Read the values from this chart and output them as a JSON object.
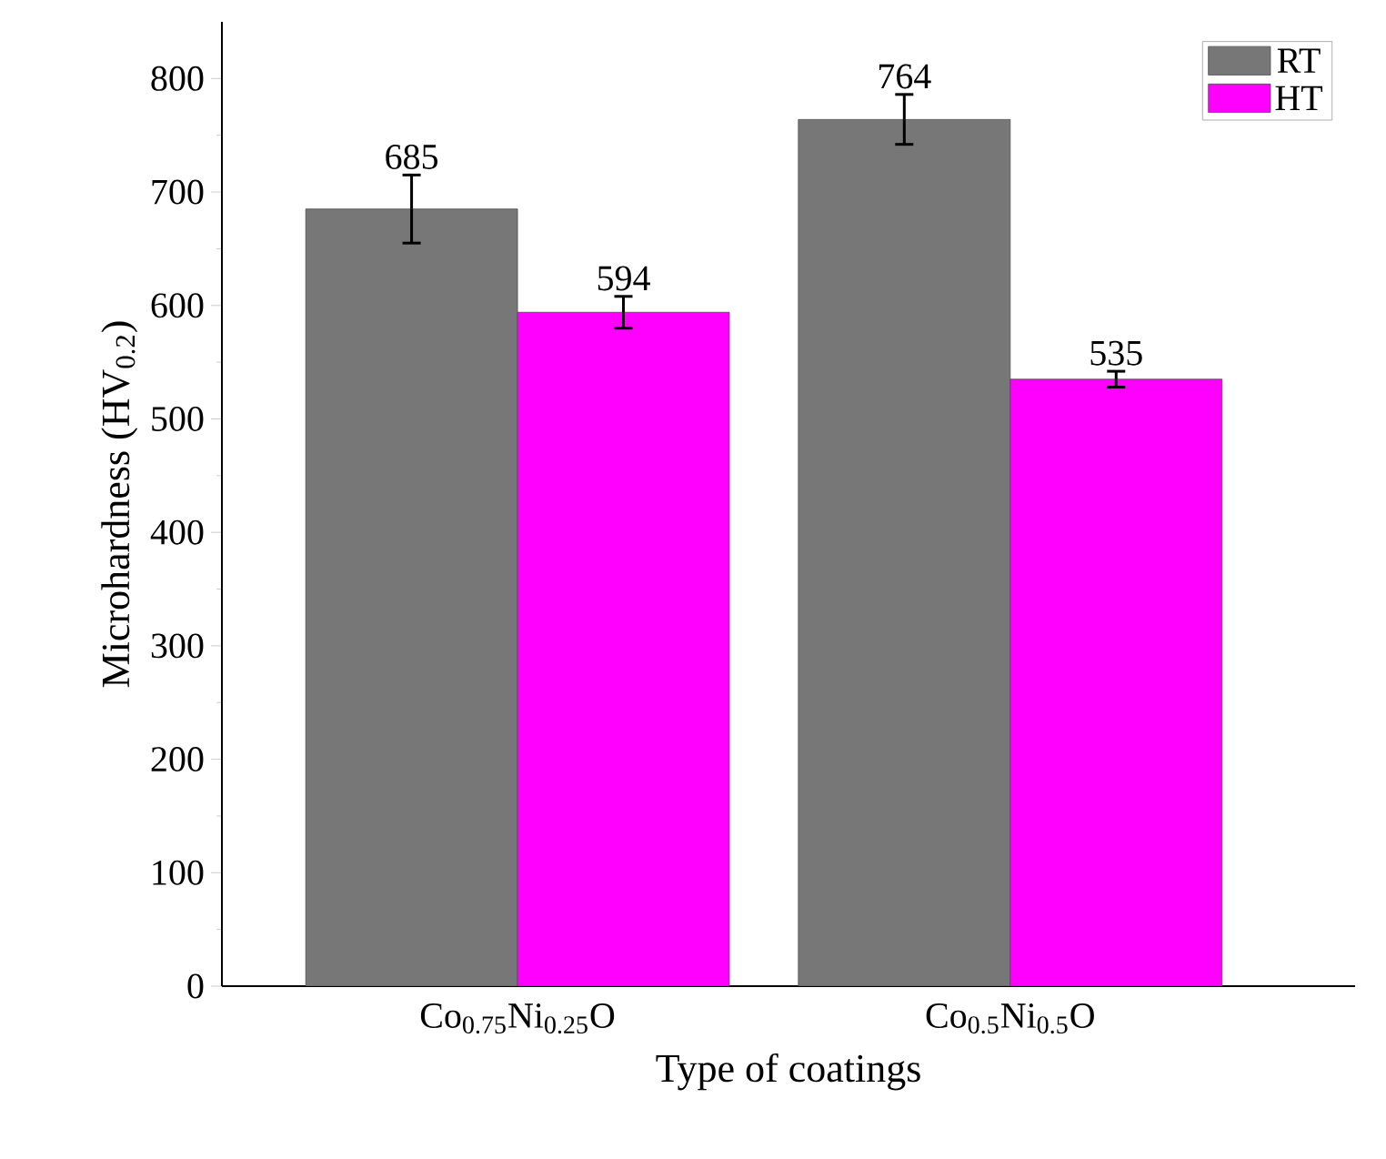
{
  "chart_data": {
    "type": "bar",
    "xlabel": "Type of coatings",
    "ylabel": "Microhardness (HV$_{0.2}$)",
    "categories": [
      "Co$_{0.75}$Ni$_{0.25}$O",
      "Co$_{0.5}$Ni$_{0.5}$O"
    ],
    "series": [
      {
        "name": "RT",
        "color": "#777777",
        "values": [
          685,
          764
        ],
        "errors": [
          30,
          22
        ]
      },
      {
        "name": "HT",
        "color": "#ff00ff",
        "values": [
          594,
          535
        ],
        "errors": [
          14,
          7
        ]
      }
    ],
    "ylim": [
      0,
      850
    ],
    "yticks": [
      0,
      100,
      200,
      300,
      400,
      500,
      600,
      700,
      800
    ],
    "data_labels": true,
    "legend": "top right",
    "grid": false
  }
}
